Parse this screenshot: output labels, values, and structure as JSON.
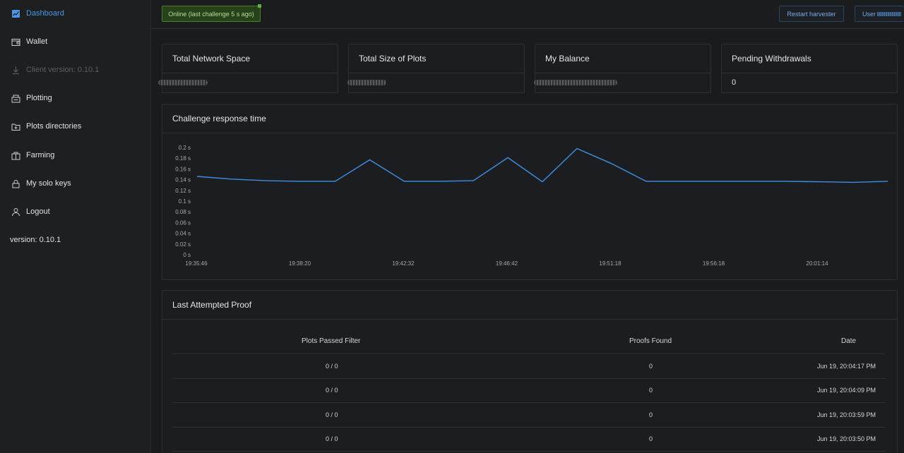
{
  "sidebar": {
    "items": [
      {
        "label": "Dashboard",
        "icon": "chart-icon",
        "state": "active"
      },
      {
        "label": "Wallet",
        "icon": "wallet-icon",
        "state": "normal"
      },
      {
        "label": "Client version: 0.10.1",
        "icon": "download-icon",
        "state": "disabled"
      },
      {
        "label": "Plotting",
        "icon": "plotting-icon",
        "state": "normal"
      },
      {
        "label": "Plots directories",
        "icon": "folder-plus-icon",
        "state": "normal"
      },
      {
        "label": "Farming",
        "icon": "farming-icon",
        "state": "normal"
      },
      {
        "label": "My solo keys",
        "icon": "lock-icon",
        "state": "normal"
      },
      {
        "label": "Logout",
        "icon": "user-icon",
        "state": "normal"
      }
    ],
    "version": "version: 0.10.1"
  },
  "topbar": {
    "status": "Online (last challenge 5 s ago)",
    "restart_label": "Restart harvester",
    "user_label": "User"
  },
  "stats": [
    {
      "title": "Total Network Space",
      "value": ""
    },
    {
      "title": "Total Size of Plots",
      "value": ""
    },
    {
      "title": "My Balance",
      "value": ""
    },
    {
      "title": "Pending Withdrawals",
      "value": "0"
    }
  ],
  "chart_data": {
    "type": "line",
    "title": "Challenge response time",
    "y_ticks": [
      "0 s",
      "0.02 s",
      "0.04 s",
      "0.06 s",
      "0.08 s",
      "0.1 s",
      "0.12 s",
      "0.14 s",
      "0.16 s",
      "0.18 s",
      "0.2 s"
    ],
    "x_ticks": [
      "19:35:46",
      "19:38:20",
      "19:42:32",
      "19:46:42",
      "19:51:18",
      "19:56:18",
      "20:01:14"
    ],
    "ylim": [
      0,
      0.2
    ],
    "values": [
      0.146,
      0.141,
      0.138,
      0.137,
      0.137,
      0.177,
      0.137,
      0.137,
      0.138,
      0.181,
      0.136,
      0.198,
      0.17,
      0.137,
      0.137,
      0.137,
      0.137,
      0.137,
      0.136,
      0.135,
      0.137
    ],
    "line_color": "#3e8fe0"
  },
  "proof_table": {
    "title": "Last Attempted Proof",
    "columns": [
      "Plots Passed Filter",
      "Proofs Found",
      "Date"
    ],
    "rows": [
      [
        "0 / 0",
        "0",
        "Jun 19, 20:04:17 PM"
      ],
      [
        "0 / 0",
        "0",
        "Jun 19, 20:04:09 PM"
      ],
      [
        "0 / 0",
        "0",
        "Jun 19, 20:03:59 PM"
      ],
      [
        "0 / 0",
        "0",
        "Jun 19, 20:03:50 PM"
      ]
    ]
  }
}
